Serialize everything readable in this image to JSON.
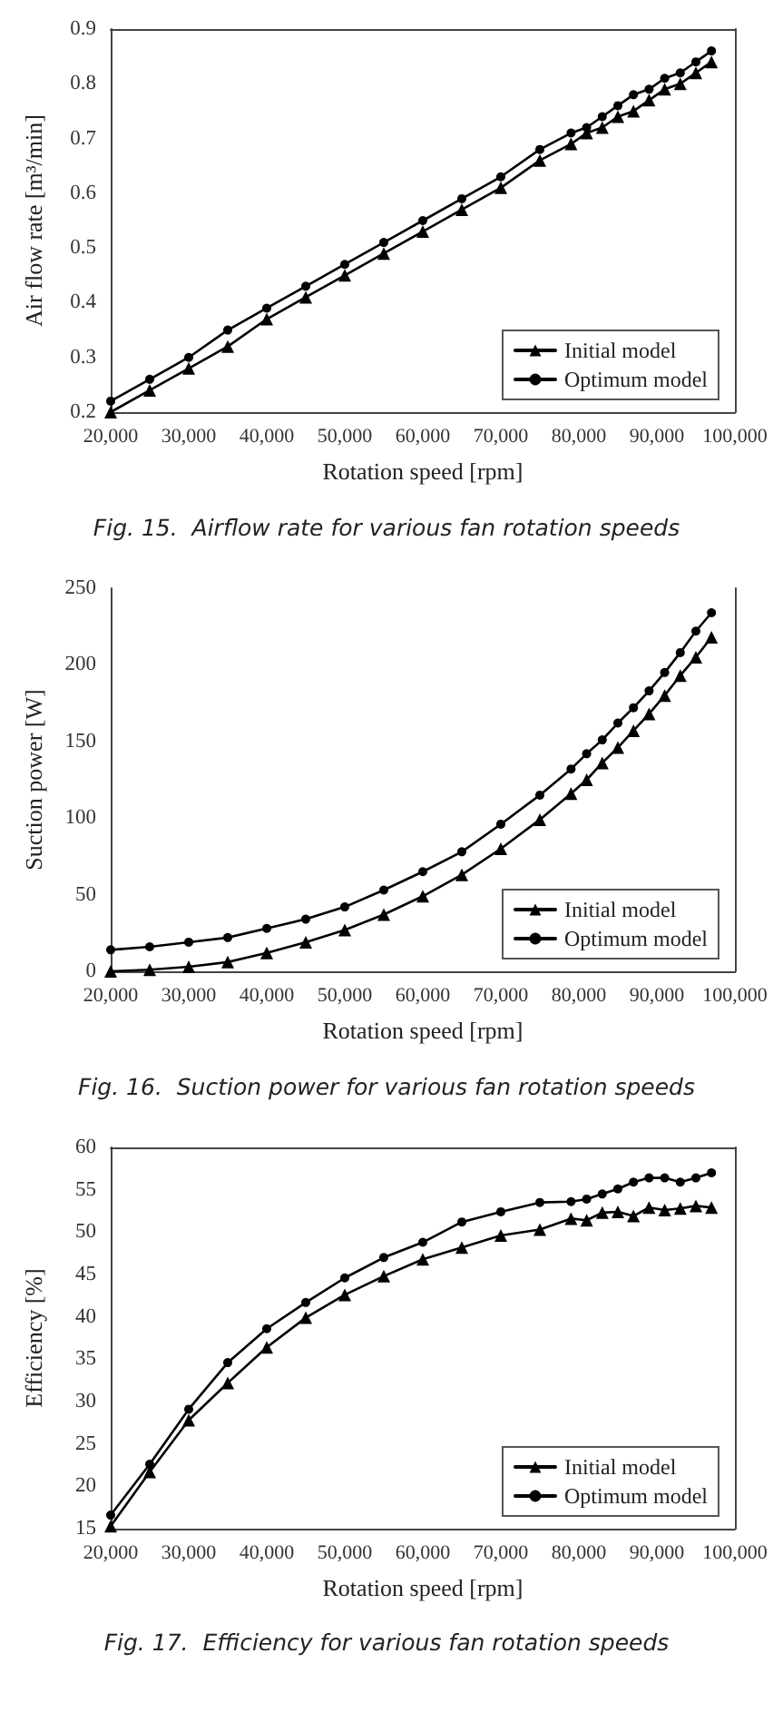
{
  "chart_data": [
    {
      "type": "line",
      "title": "Fig. 15.  Airflow rate for various fan rotation speeds",
      "xlabel": "Rotation speed [rpm]",
      "ylabel": "Air flow rate [m³/min]",
      "x": [
        20000,
        25000,
        30000,
        35000,
        40000,
        45000,
        50000,
        55000,
        60000,
        65000,
        70000,
        75000,
        79000,
        81000,
        83000,
        85000,
        87000,
        89000,
        91000,
        93000,
        95000,
        97000
      ],
      "series": [
        {
          "name": "Initial model",
          "color": "#000000",
          "marker": "triangle",
          "values": [
            0.2,
            0.24,
            0.28,
            0.32,
            0.37,
            0.41,
            0.45,
            0.49,
            0.53,
            0.57,
            0.61,
            0.66,
            0.69,
            0.71,
            0.72,
            0.74,
            0.75,
            0.77,
            0.79,
            0.8,
            0.82,
            0.84
          ]
        },
        {
          "name": "Optimum model",
          "color": "#000000",
          "marker": "circle",
          "values": [
            0.22,
            0.26,
            0.3,
            0.35,
            0.39,
            0.43,
            0.47,
            0.51,
            0.55,
            0.59,
            0.63,
            0.68,
            0.71,
            0.72,
            0.74,
            0.76,
            0.78,
            0.79,
            0.81,
            0.82,
            0.84,
            0.86
          ]
        }
      ],
      "xlim": [
        20000,
        100000
      ],
      "xticks": [
        {
          "value": 20000,
          "label": "20,000"
        },
        {
          "value": 30000,
          "label": "30,000"
        },
        {
          "value": 40000,
          "label": "40,000"
        },
        {
          "value": 50000,
          "label": "50,000"
        },
        {
          "value": 60000,
          "label": "60,000"
        },
        {
          "value": 70000,
          "label": "70,000"
        },
        {
          "value": 80000,
          "label": "80,000"
        },
        {
          "value": 90000,
          "label": "90,000"
        },
        {
          "value": 100000,
          "label": "100,000"
        }
      ],
      "ylim": [
        0.2,
        0.9
      ],
      "yticks": [
        0.2,
        0.3,
        0.4,
        0.5,
        0.6,
        0.7,
        0.8,
        0.9
      ],
      "grid": false,
      "legend": "bottom right",
      "line_style": "solid"
    },
    {
      "type": "line",
      "title": "Fig. 16.  Suction power for various fan rotation speeds",
      "xlabel": "Rotation speed [rpm]",
      "ylabel": "Suction power [W]",
      "x": [
        20000,
        25000,
        30000,
        35000,
        40000,
        45000,
        50000,
        55000,
        60000,
        65000,
        70000,
        75000,
        79000,
        81000,
        83000,
        85000,
        87000,
        89000,
        91000,
        93000,
        95000,
        97000
      ],
      "series": [
        {
          "name": "Initial model",
          "color": "#000000",
          "marker": "triangle",
          "values": [
            0,
            1,
            3,
            6,
            12,
            19,
            27,
            37,
            49,
            63,
            80,
            99,
            116,
            125,
            136,
            146,
            157,
            168,
            180,
            193,
            205,
            218
          ]
        },
        {
          "name": "Optimum model",
          "color": "#000000",
          "marker": "circle",
          "values": [
            14,
            16,
            19,
            22,
            28,
            34,
            42,
            53,
            65,
            78,
            96,
            115,
            132,
            142,
            151,
            162,
            172,
            183,
            195,
            208,
            222,
            234
          ]
        }
      ],
      "xlim": [
        20000,
        100000
      ],
      "xticks": [
        {
          "value": 20000,
          "label": "20,000"
        },
        {
          "value": 30000,
          "label": "30,000"
        },
        {
          "value": 40000,
          "label": "40,000"
        },
        {
          "value": 50000,
          "label": "50,000"
        },
        {
          "value": 60000,
          "label": "60,000"
        },
        {
          "value": 70000,
          "label": "70,000"
        },
        {
          "value": 80000,
          "label": "80,000"
        },
        {
          "value": 90000,
          "label": "90,000"
        },
        {
          "value": 100000,
          "label": "100,000"
        }
      ],
      "ylim": [
        0,
        250
      ],
      "yticks": [
        0,
        50,
        100,
        150,
        200,
        250
      ],
      "grid": false,
      "legend": "bottom right",
      "line_style": "solid"
    },
    {
      "type": "line",
      "title": "Fig. 17.  Efficiency for various fan rotation speeds",
      "xlabel": "Rotation speed [rpm]",
      "ylabel": "Efficiency [%]",
      "x": [
        20000,
        25000,
        30000,
        35000,
        40000,
        45000,
        50000,
        55000,
        60000,
        65000,
        70000,
        75000,
        79000,
        81000,
        83000,
        85000,
        87000,
        89000,
        91000,
        93000,
        95000,
        97000
      ],
      "series": [
        {
          "name": "Initial model",
          "color": "#000000",
          "marker": "triangle",
          "values": [
            15.3,
            21.7,
            27.8,
            32.2,
            36.4,
            39.9,
            42.6,
            44.8,
            46.8,
            48.2,
            49.6,
            50.3,
            51.6,
            51.4,
            52.3,
            52.4,
            51.9,
            52.9,
            52.6,
            52.8,
            53.1,
            52.9
          ]
        },
        {
          "name": "Optimum model",
          "color": "#000000",
          "marker": "circle",
          "values": [
            16.6,
            22.6,
            29.1,
            34.6,
            38.6,
            41.7,
            44.6,
            47.0,
            48.8,
            51.2,
            52.4,
            53.5,
            53.6,
            53.9,
            54.5,
            55.1,
            55.9,
            56.4,
            56.4,
            55.9,
            56.4,
            57.0
          ]
        }
      ],
      "xlim": [
        20000,
        100000
      ],
      "xticks": [
        {
          "value": 20000,
          "label": "20,000"
        },
        {
          "value": 30000,
          "label": "30,000"
        },
        {
          "value": 40000,
          "label": "40,000"
        },
        {
          "value": 50000,
          "label": "50,000"
        },
        {
          "value": 60000,
          "label": "60,000"
        },
        {
          "value": 70000,
          "label": "70,000"
        },
        {
          "value": 80000,
          "label": "80,000"
        },
        {
          "value": 90000,
          "label": "90,000"
        },
        {
          "value": 100000,
          "label": "100,000"
        }
      ],
      "ylim": [
        15,
        60
      ],
      "yticks": [
        15,
        20,
        25,
        30,
        35,
        40,
        45,
        50,
        55,
        60
      ],
      "grid": false,
      "legend": "bottom right",
      "line_style": "solid"
    }
  ]
}
